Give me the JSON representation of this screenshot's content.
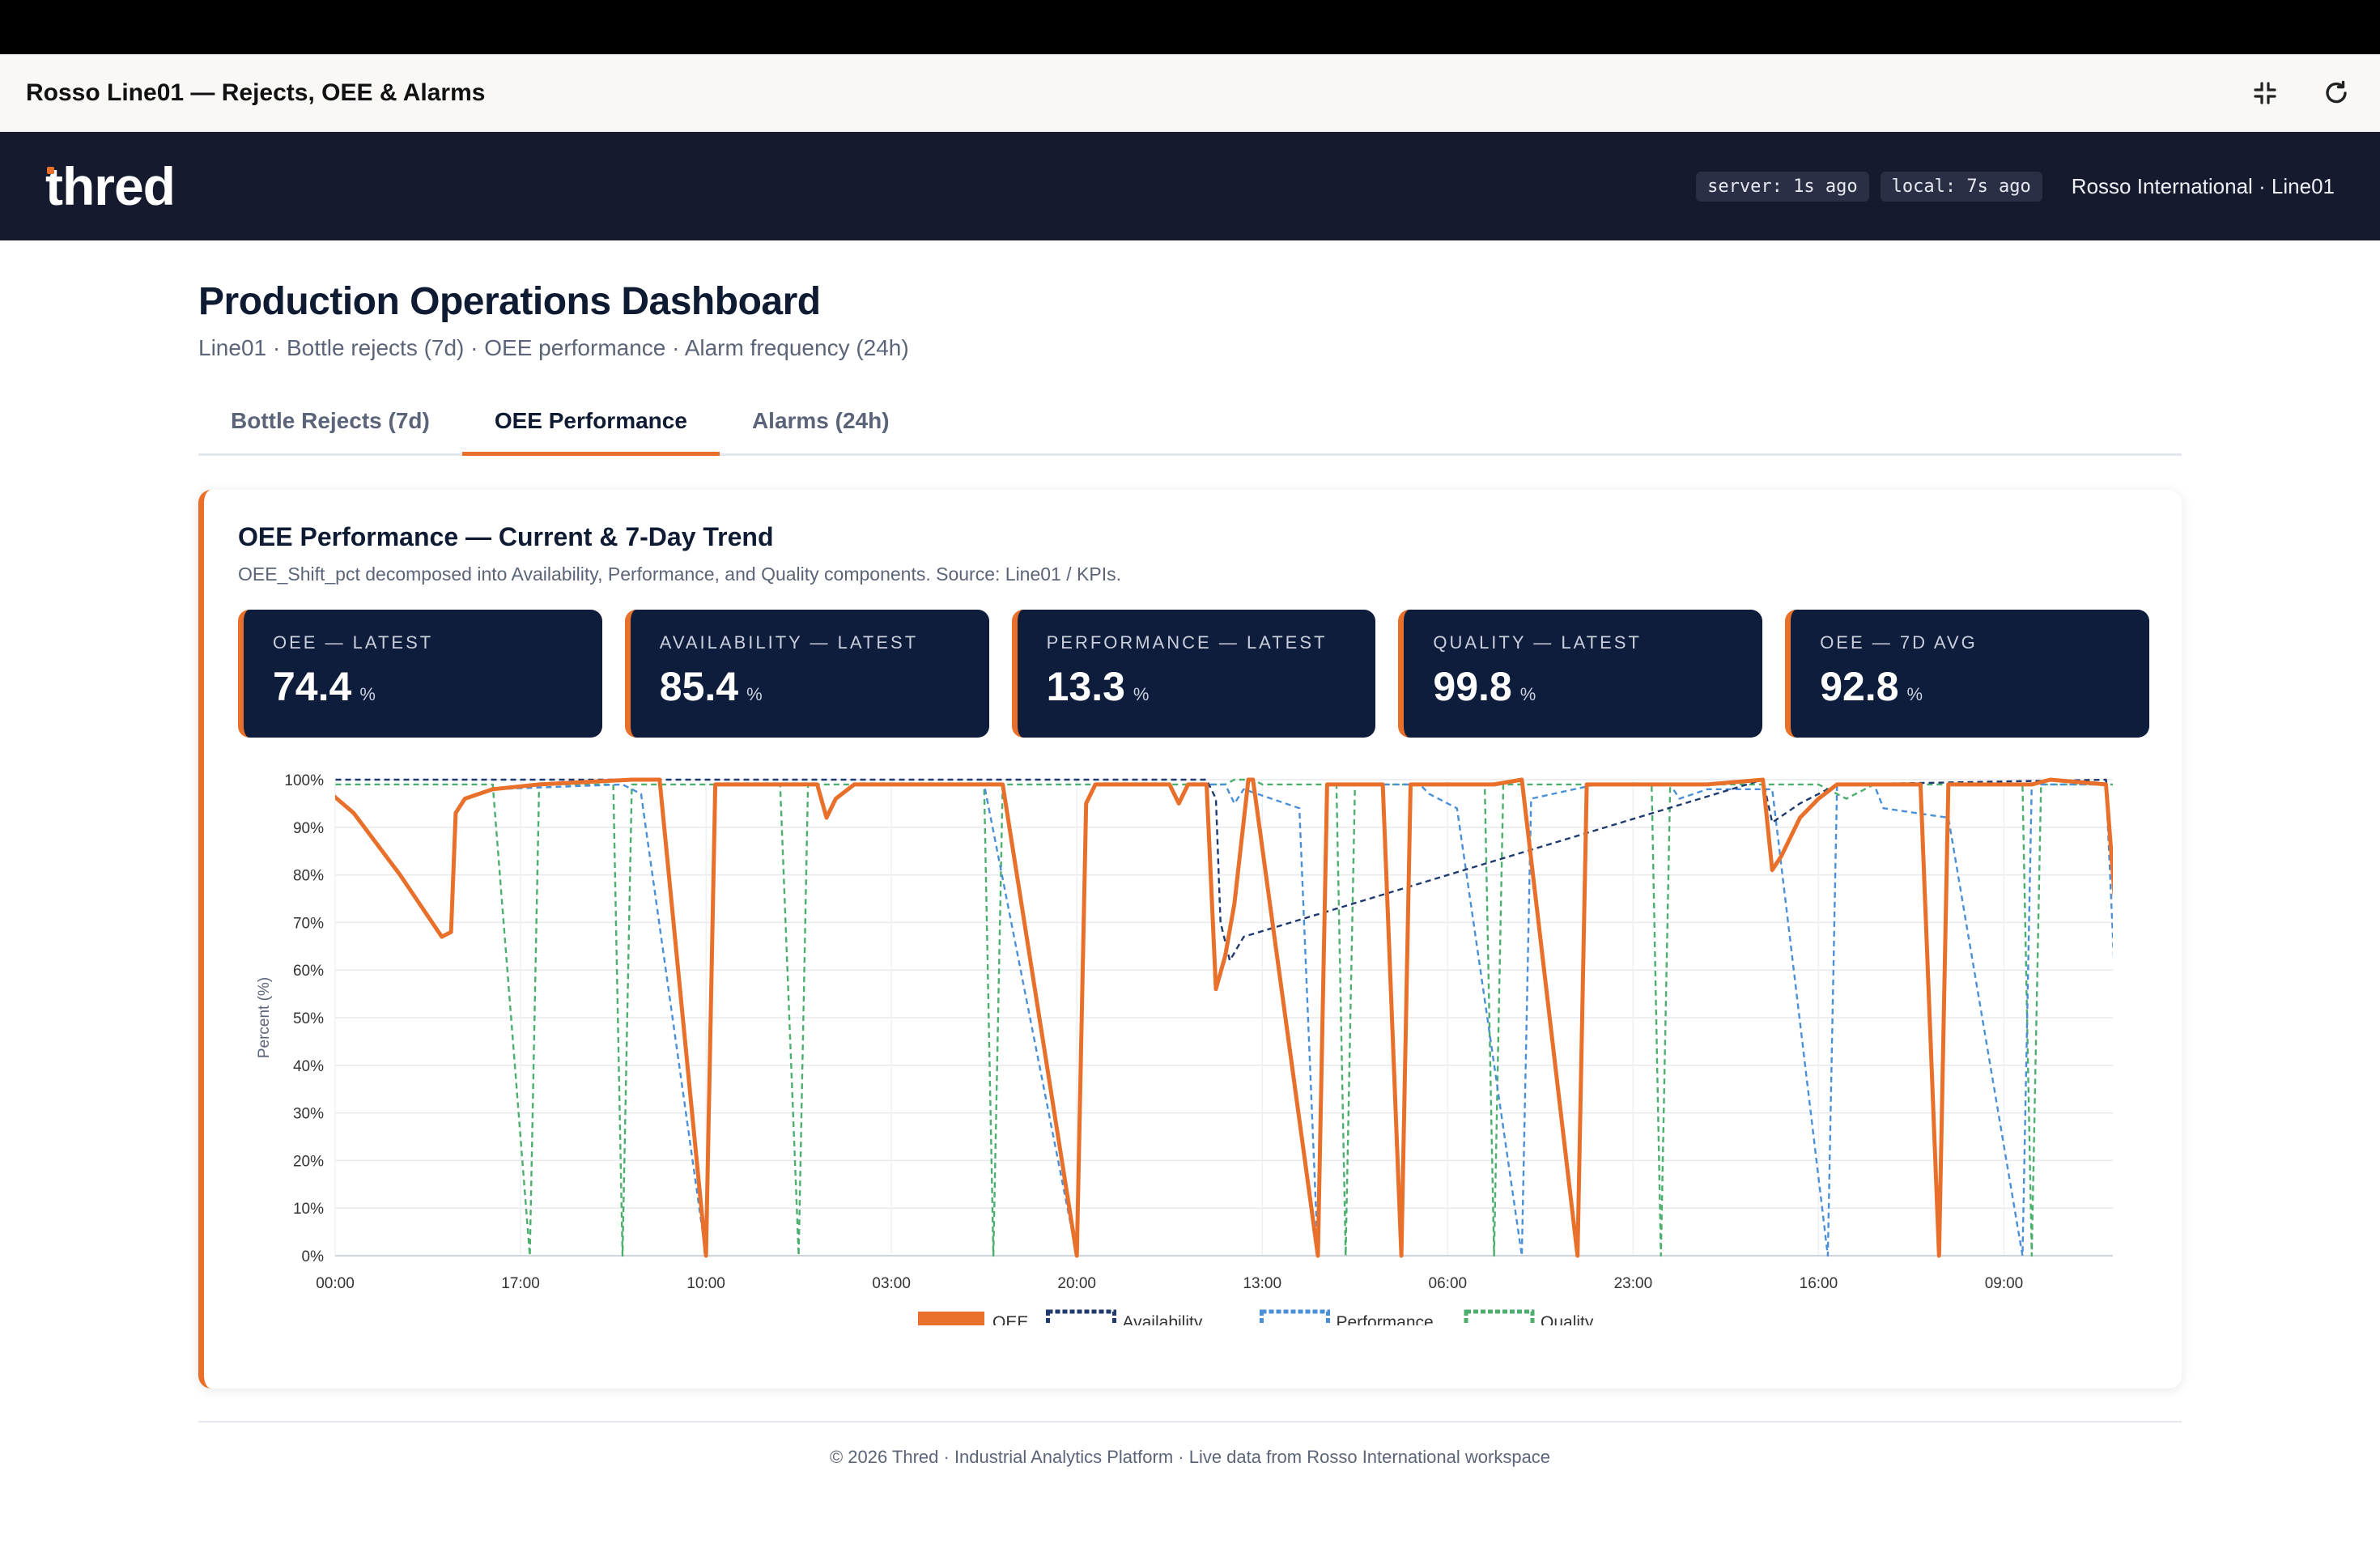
{
  "window": {
    "title": "Rosso Line01 — Rejects, OEE & Alarms"
  },
  "brand": {
    "logo": "thred",
    "accent": "#e8702a",
    "navy": "#161a2e"
  },
  "header": {
    "server_status": "server: 1s ago",
    "local_status": "local: 7s ago",
    "org": "Rosso International · Line01"
  },
  "page": {
    "title": "Production Operations Dashboard",
    "subtitle": "Line01 · Bottle rejects (7d) · OEE performance · Alarm frequency (24h)"
  },
  "tabs": [
    {
      "label": "Bottle Rejects (7d)",
      "active": false
    },
    {
      "label": "OEE Performance",
      "active": true
    },
    {
      "label": "Alarms (24h)",
      "active": false
    }
  ],
  "card": {
    "title": "OEE Performance — Current & 7-Day Trend",
    "subtitle": "OEE_Shift_pct decomposed into Availability, Performance, and Quality components. Source: Line01 / KPIs."
  },
  "kpis": [
    {
      "label": "OEE — LATEST",
      "value": "74.4",
      "unit": "%"
    },
    {
      "label": "AVAILABILITY — LATEST",
      "value": "85.4",
      "unit": "%"
    },
    {
      "label": "PERFORMANCE — LATEST",
      "value": "13.3",
      "unit": "%"
    },
    {
      "label": "QUALITY — LATEST",
      "value": "99.8",
      "unit": "%"
    },
    {
      "label": "OEE — 7D AVG",
      "value": "92.8",
      "unit": "%"
    }
  ],
  "chart_data": {
    "type": "line",
    "ylabel": "Percent (%)",
    "ylim": [
      0,
      100
    ],
    "yticks": [
      "0%",
      "10%",
      "20%",
      "30%",
      "40%",
      "50%",
      "60%",
      "70%",
      "80%",
      "90%",
      "100%"
    ],
    "xlim": [
      0,
      190
    ],
    "xticks": [
      {
        "x": 0,
        "label": "00:00"
      },
      {
        "x": 20,
        "label": "17:00"
      },
      {
        "x": 40,
        "label": "10:00"
      },
      {
        "x": 60,
        "label": "03:00"
      },
      {
        "x": 80,
        "label": "20:00"
      },
      {
        "x": 100,
        "label": "13:00"
      },
      {
        "x": 120,
        "label": "06:00"
      },
      {
        "x": 140,
        "label": "23:00"
      },
      {
        "x": 160,
        "label": "16:00"
      },
      {
        "x": 180,
        "label": "09:00"
      }
    ],
    "grid": true,
    "legend": "bottom",
    "series": [
      {
        "name": "OEE",
        "color": "#e8702a",
        "dashed": false,
        "points": [
          [
            -1,
            98
          ],
          [
            2,
            93
          ],
          [
            7,
            80
          ],
          [
            11.5,
            67
          ],
          [
            12.5,
            68
          ],
          [
            13,
            93
          ],
          [
            14,
            96
          ],
          [
            17,
            98
          ],
          [
            22,
            99
          ],
          [
            32,
            100
          ],
          [
            35,
            100
          ],
          [
            40,
            0
          ],
          [
            41,
            99
          ],
          [
            46,
            99
          ],
          [
            52,
            99
          ],
          [
            53,
            92
          ],
          [
            54,
            96
          ],
          [
            56,
            99
          ],
          [
            62,
            99
          ],
          [
            72,
            99
          ],
          [
            80,
            0
          ],
          [
            81,
            95
          ],
          [
            82,
            99
          ],
          [
            86,
            99
          ],
          [
            90,
            99
          ],
          [
            91,
            95
          ],
          [
            92,
            99
          ],
          [
            94,
            99
          ],
          [
            95,
            56
          ],
          [
            96,
            63
          ],
          [
            97,
            74
          ],
          [
            98.5,
            100
          ],
          [
            99,
            100
          ],
          [
            106,
            0
          ],
          [
            107,
            99
          ],
          [
            113,
            99
          ],
          [
            115,
            0
          ],
          [
            116,
            99
          ],
          [
            120,
            99
          ],
          [
            125,
            99
          ],
          [
            128,
            100
          ],
          [
            134,
            0
          ],
          [
            135,
            99
          ],
          [
            143,
            99
          ],
          [
            148,
            99
          ],
          [
            154,
            100
          ],
          [
            155,
            81
          ],
          [
            156,
            84
          ],
          [
            158,
            92
          ],
          [
            160,
            96
          ],
          [
            162,
            99
          ],
          [
            165,
            99
          ],
          [
            171,
            99
          ],
          [
            173,
            0
          ],
          [
            174,
            99
          ],
          [
            176,
            99
          ],
          [
            179,
            99
          ],
          [
            183,
            99
          ],
          [
            185,
            100
          ],
          [
            191,
            99
          ],
          [
            192,
            74
          ]
        ]
      },
      {
        "name": "Availability",
        "color": "#1e3a6e",
        "dashed": true,
        "points": [
          [
            -1,
            100
          ],
          [
            35,
            100
          ],
          [
            80,
            100
          ],
          [
            94,
            100
          ],
          [
            95,
            96
          ],
          [
            95.5,
            70
          ],
          [
            96.5,
            62
          ],
          [
            98,
            67
          ],
          [
            154,
            100
          ],
          [
            155,
            91
          ],
          [
            158,
            95
          ],
          [
            162,
            99
          ],
          [
            191,
            100
          ],
          [
            192,
            75
          ]
        ]
      },
      {
        "name": "Performance",
        "color": "#4a90d9",
        "dashed": true,
        "points": [
          [
            -1,
            98
          ],
          [
            2,
            93
          ],
          [
            7,
            80
          ],
          [
            11.5,
            67
          ],
          [
            12.5,
            68
          ],
          [
            13,
            93
          ],
          [
            14,
            96
          ],
          [
            17,
            98
          ],
          [
            31,
            99
          ],
          [
            33,
            97
          ],
          [
            40,
            0
          ],
          [
            41,
            99
          ],
          [
            52,
            99
          ],
          [
            53,
            92
          ],
          [
            54,
            96
          ],
          [
            56,
            99
          ],
          [
            70,
            99
          ],
          [
            80,
            0
          ],
          [
            81,
            95
          ],
          [
            82,
            99
          ],
          [
            90,
            99
          ],
          [
            91,
            95
          ],
          [
            92,
            99
          ],
          [
            96,
            99
          ],
          [
            97,
            95
          ],
          [
            98,
            98
          ],
          [
            104,
            94
          ],
          [
            106,
            0
          ],
          [
            107,
            99
          ],
          [
            117,
            99
          ],
          [
            118,
            97
          ],
          [
            121,
            94
          ],
          [
            128,
            0
          ],
          [
            129,
            96
          ],
          [
            136,
            99
          ],
          [
            144,
            99
          ],
          [
            145,
            96
          ],
          [
            148,
            98
          ],
          [
            155,
            98
          ],
          [
            161,
            0
          ],
          [
            162,
            99
          ],
          [
            166,
            99
          ],
          [
            167,
            94
          ],
          [
            174,
            92
          ],
          [
            182,
            0
          ],
          [
            183,
            99
          ],
          [
            191,
            99
          ],
          [
            193,
            13
          ],
          [
            198,
            13
          ]
        ]
      },
      {
        "name": "Quality",
        "color": "#4caf6e",
        "dashed": true,
        "points": [
          [
            -1,
            99
          ],
          [
            17,
            99
          ],
          [
            21,
            0
          ],
          [
            22,
            99
          ],
          [
            30,
            99
          ],
          [
            31,
            0
          ],
          [
            32,
            99
          ],
          [
            48,
            99
          ],
          [
            50,
            0
          ],
          [
            51,
            99
          ],
          [
            70,
            99
          ],
          [
            71,
            0
          ],
          [
            72,
            99
          ],
          [
            96,
            99
          ],
          [
            97,
            100
          ],
          [
            99,
            100
          ],
          [
            100,
            99
          ],
          [
            108,
            99
          ],
          [
            109,
            0
          ],
          [
            110,
            99
          ],
          [
            124,
            99
          ],
          [
            125,
            0
          ],
          [
            126,
            99
          ],
          [
            142,
            99
          ],
          [
            143,
            0
          ],
          [
            144,
            99
          ],
          [
            160,
            99
          ],
          [
            163,
            96
          ],
          [
            166,
            99
          ],
          [
            182,
            99
          ],
          [
            183,
            0
          ],
          [
            184,
            99
          ],
          [
            192,
            99
          ],
          [
            193,
            0
          ],
          [
            196,
            99
          ]
        ]
      }
    ]
  },
  "footer": {
    "text": "© 2026 Thred · Industrial Analytics Platform · Live data from Rosso International workspace"
  }
}
